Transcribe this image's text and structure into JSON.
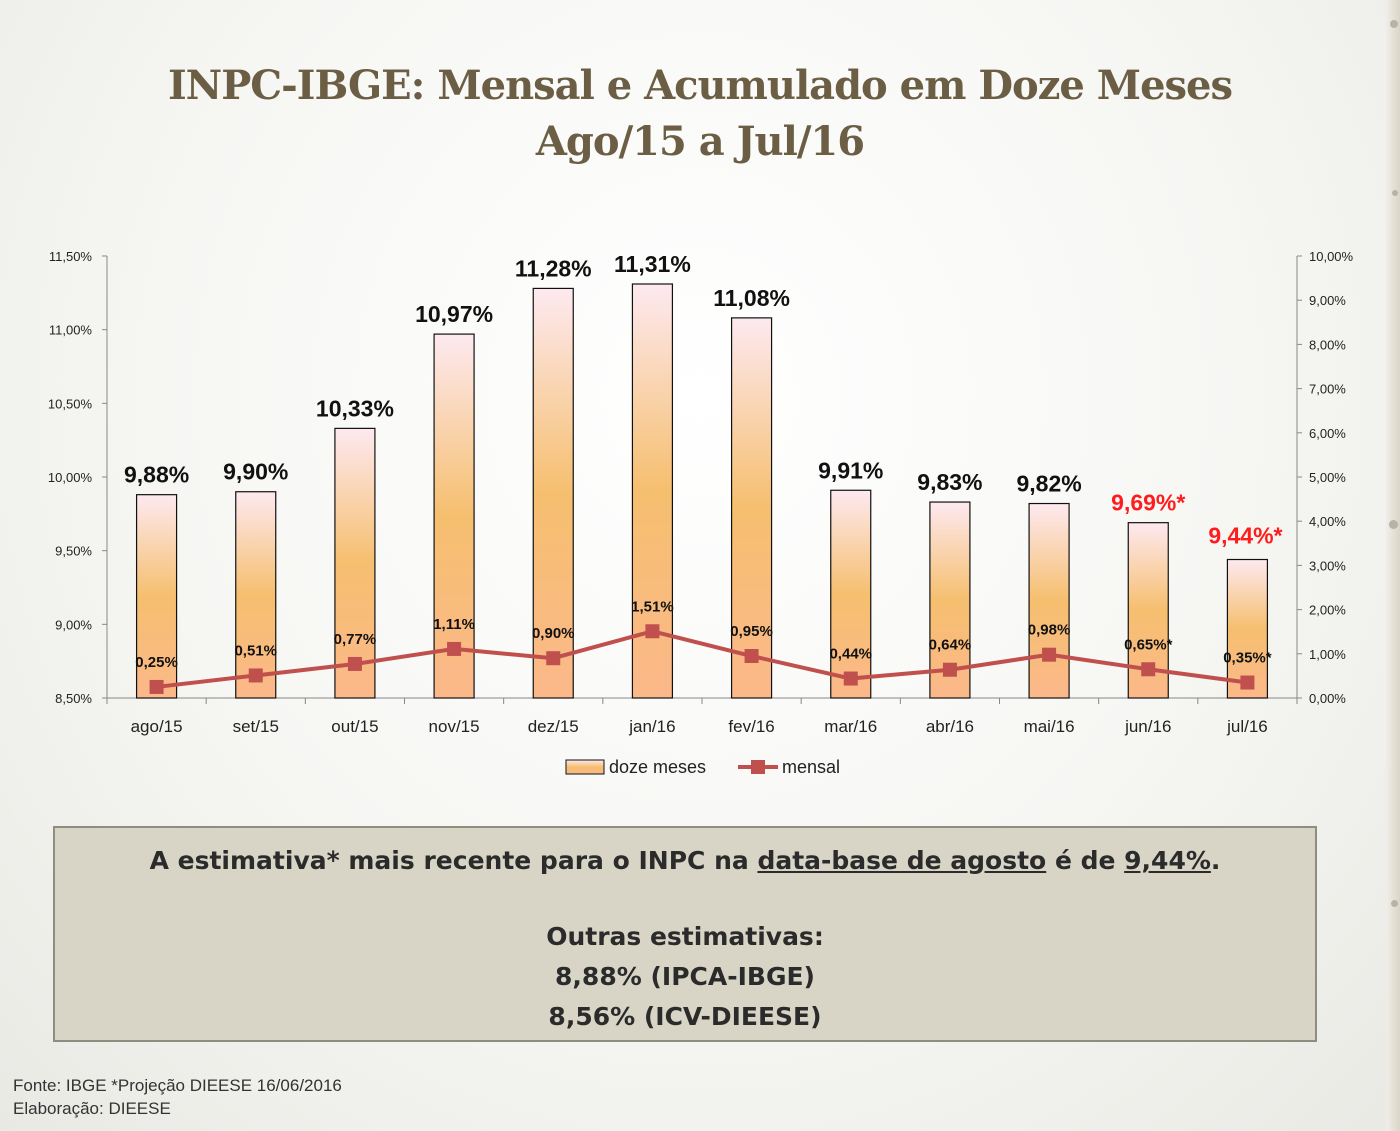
{
  "title": {
    "line1": "INPC-IBGE: Mensal e Acumulado em Doze Meses",
    "line2": "Ago/15 a Jul/16"
  },
  "chart_data": {
    "type": "bar",
    "categories": [
      "ago/15",
      "set/15",
      "out/15",
      "nov/15",
      "dez/15",
      "jan/16",
      "fev/16",
      "mar/16",
      "abr/16",
      "mai/16",
      "jun/16",
      "jul/16"
    ],
    "series": [
      {
        "name": "doze meses",
        "type": "bar",
        "axis": "left",
        "values": [
          9.88,
          9.9,
          10.33,
          10.97,
          11.28,
          11.31,
          11.08,
          9.91,
          9.83,
          9.82,
          9.69,
          9.44
        ],
        "labels": [
          "9,88%",
          "9,90%",
          "10,33%",
          "10,97%",
          "11,28%",
          "11,31%",
          "11,08%",
          "9,91%",
          "9,83%",
          "9,82%",
          "9,69%*",
          "9,44%*"
        ]
      },
      {
        "name": "mensal",
        "type": "line",
        "axis": "right",
        "values": [
          0.25,
          0.51,
          0.77,
          1.11,
          0.9,
          1.51,
          0.95,
          0.44,
          0.64,
          0.98,
          0.65,
          0.35
        ],
        "labels": [
          "0,25%",
          "0,51%",
          "0,77%",
          "1,11%",
          "0,90%",
          "1,51%",
          "0,95%",
          "0,44%",
          "0,64%",
          "0,98%",
          "0,65%*",
          "0,35%*"
        ]
      }
    ],
    "estimated_from_index": 10,
    "y_left": {
      "range": [
        8.5,
        11.5
      ],
      "ticks": [
        "8,50%",
        "9,00%",
        "9,50%",
        "10,00%",
        "10,50%",
        "11,00%",
        "11,50%"
      ]
    },
    "y_right": {
      "range": [
        0,
        10
      ],
      "ticks": [
        "0,00%",
        "1,00%",
        "2,00%",
        "3,00%",
        "4,00%",
        "5,00%",
        "6,00%",
        "7,00%",
        "8,00%",
        "9,00%",
        "10,00%"
      ]
    },
    "legend_position": "bottom",
    "grid": false,
    "colors": {
      "bar_top": "#fde9f0",
      "bar_mid": "#f6bf6f",
      "bar_bottom": "#fbb88a",
      "line": "#c0504d",
      "estimate_label": "#ff1c1c"
    }
  },
  "note": {
    "line1_pre": "A estimativa* mais recente para o INPC na ",
    "line1_link": "data-base de agosto",
    "line1_mid": " é de ",
    "line1_value": "9,44%",
    "line1_end": ".",
    "line2": "Outras estimativas:",
    "line3": "8,88% (IPCA-IBGE)",
    "line4": "8,56% (ICV-DIEESE)"
  },
  "footer": {
    "line1": "Fonte: IBGE *Projeção DIEESE 16/06/2016",
    "line2": "Elaboração: DIEESE"
  }
}
